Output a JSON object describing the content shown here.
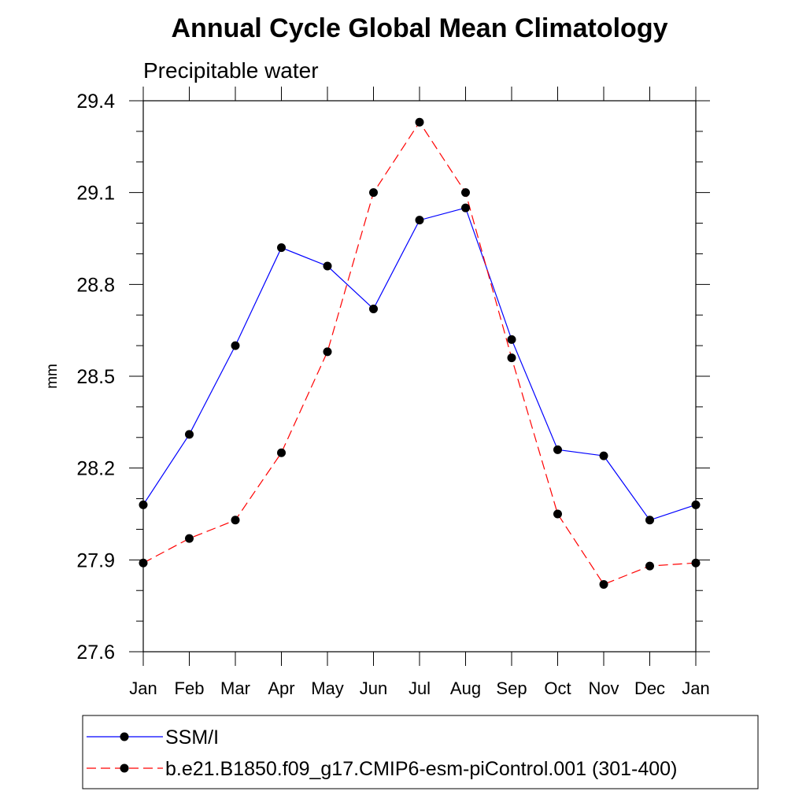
{
  "chart_data": {
    "type": "line",
    "title": "Annual Cycle Global Mean Climatology",
    "subtitle": "Precipitable water",
    "xlabel": "",
    "ylabel": "mm",
    "categories": [
      "Jan",
      "Feb",
      "Mar",
      "Apr",
      "May",
      "Jun",
      "Jul",
      "Aug",
      "Sep",
      "Oct",
      "Nov",
      "Dec",
      "Jan"
    ],
    "ylim": [
      27.6,
      29.4
    ],
    "yticks": [
      "27.6",
      "27.9",
      "28.2",
      "28.5",
      "28.8",
      "29.1",
      "29.4"
    ],
    "grid": false,
    "legend_position": "bottom",
    "series": [
      {
        "name": "SSM/I",
        "color": "#0000ff",
        "dash": "solid",
        "marker": "filled-circle",
        "values": [
          28.08,
          28.31,
          28.6,
          28.92,
          28.86,
          28.72,
          29.01,
          29.05,
          28.62,
          28.26,
          28.24,
          28.03,
          28.08
        ]
      },
      {
        "name": "b.e21.B1850.f09_g17.CMIP6-esm-piControl.001 (301-400)",
        "color": "#ff0000",
        "dash": "dashed",
        "marker": "filled-circle",
        "values": [
          27.89,
          27.97,
          28.03,
          28.25,
          28.58,
          29.1,
          29.33,
          29.1,
          28.56,
          28.05,
          27.82,
          27.88,
          27.89
        ]
      }
    ]
  }
}
